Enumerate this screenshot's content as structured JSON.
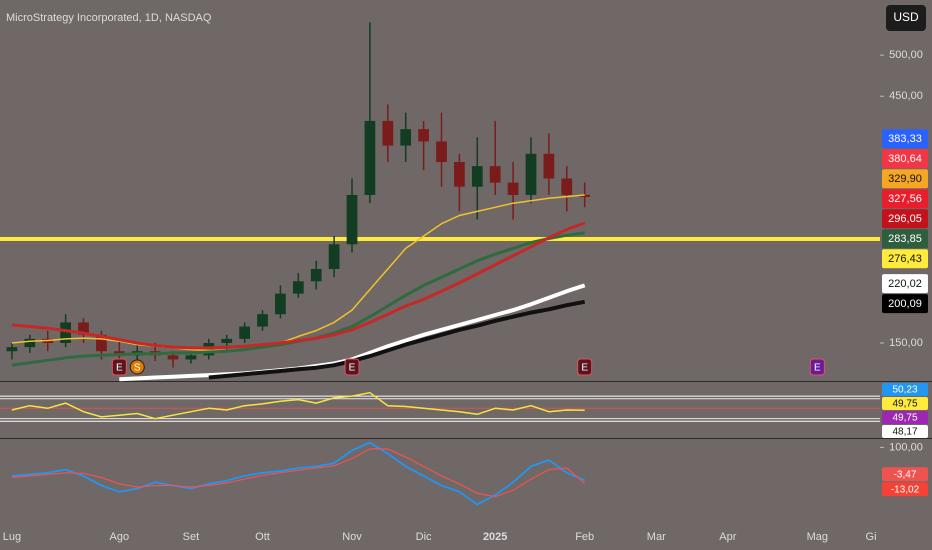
{
  "title": "MicroStrategy Incorporated, 1D, NASDAQ",
  "currency_button": "USD",
  "chart_data": [
    {
      "type": "candlestick",
      "categories": [
        "Lug",
        null,
        null,
        null,
        null,
        null,
        "Ago",
        null,
        null,
        null,
        "Set",
        null,
        null,
        null,
        "Ott",
        null,
        null,
        null,
        null,
        "Nov",
        null,
        null,
        null,
        "Dic",
        null,
        null,
        null,
        "2025",
        null,
        null,
        null,
        null,
        "Feb",
        null,
        null,
        null,
        "Mar",
        null,
        null,
        null,
        "Apr",
        null,
        null,
        null,
        null,
        "Mag",
        null,
        null,
        "Gi"
      ],
      "open": [
        140,
        145,
        155,
        150,
        175,
        160,
        140,
        135,
        140,
        135,
        130,
        135,
        150,
        155,
        170,
        185,
        210,
        225,
        240,
        270,
        330,
        420,
        390,
        410,
        395,
        370,
        340,
        365,
        345,
        330,
        380,
        350,
        330,
        null,
        null,
        null,
        null,
        null,
        null,
        null,
        null,
        null,
        null,
        null,
        null,
        null,
        null,
        null,
        null
      ],
      "high": [
        150,
        160,
        165,
        185,
        180,
        165,
        155,
        150,
        150,
        140,
        140,
        155,
        160,
        175,
        190,
        220,
        235,
        250,
        280,
        350,
        540,
        440,
        430,
        420,
        430,
        380,
        400,
        420,
        370,
        400,
        405,
        365,
        345,
        null,
        null,
        null,
        null,
        null,
        null,
        null,
        null,
        null,
        null,
        null,
        null,
        null,
        null,
        null,
        null
      ],
      "low": [
        130,
        138,
        140,
        145,
        150,
        130,
        120,
        125,
        128,
        120,
        125,
        130,
        140,
        150,
        165,
        180,
        205,
        215,
        230,
        260,
        320,
        370,
        370,
        360,
        340,
        310,
        300,
        330,
        300,
        320,
        330,
        310,
        315,
        null,
        null,
        null,
        null,
        null,
        null,
        null,
        null,
        null,
        null,
        null,
        null,
        null,
        null,
        null,
        null
      ],
      "close": [
        145,
        155,
        150,
        175,
        160,
        140,
        135,
        140,
        135,
        130,
        135,
        150,
        155,
        170,
        185,
        210,
        225,
        240,
        270,
        330,
        420,
        390,
        410,
        395,
        370,
        340,
        365,
        345,
        330,
        380,
        350,
        330,
        327.56,
        null,
        null,
        null,
        null,
        null,
        null,
        null,
        null,
        null,
        null,
        null,
        null,
        null,
        null,
        null,
        null
      ],
      "up_color": "#123d22",
      "down_color": "#7a1c1c",
      "ylim": [
        105,
        567
      ],
      "yticks": [
        {
          "value": 150,
          "label": "150,00"
        },
        {
          "value": 450,
          "label": "450,00"
        },
        {
          "value": 500,
          "label": "500,00"
        }
      ],
      "series": [
        {
          "color": "#f2c12e",
          "width": 1.5,
          "values": [
            150,
            152,
            153,
            155,
            156,
            155,
            152,
            148,
            146,
            144,
            142,
            141,
            141,
            142,
            145,
            150,
            158,
            165,
            175,
            190,
            215,
            240,
            265,
            280,
            295,
            305,
            310,
            315,
            320,
            323,
            326,
            328,
            329.9,
            null,
            null,
            null,
            null,
            null,
            null,
            null,
            null,
            null,
            null,
            null,
            null,
            null,
            null,
            null,
            null
          ]
        },
        {
          "color": "#2f6b3f",
          "width": 3,
          "values": [
            123,
            126,
            129,
            132,
            134,
            135,
            136,
            137,
            137,
            138,
            138,
            139,
            140,
            142,
            145,
            148,
            152,
            156,
            162,
            170,
            182,
            195,
            208,
            220,
            230,
            240,
            250,
            258,
            265,
            272,
            277,
            281,
            283.85,
            null,
            null,
            null,
            null,
            null,
            null,
            null,
            null,
            null,
            null,
            null,
            null,
            null,
            null,
            null,
            null
          ]
        },
        {
          "color": "#c62828",
          "width": 3,
          "values": [
            172,
            170,
            168,
            165,
            162,
            158,
            154,
            150,
            147,
            145,
            144,
            144,
            145,
            146,
            148,
            150,
            153,
            156,
            160,
            166,
            175,
            185,
            195,
            203,
            213,
            223,
            234,
            245,
            256,
            267,
            278,
            288,
            296.05,
            null,
            null,
            null,
            null,
            null,
            null,
            null,
            null,
            null,
            null,
            null,
            null,
            null,
            null,
            null,
            null
          ]
        },
        {
          "color": "#ffffff",
          "width": 4,
          "values": [
            null,
            null,
            null,
            null,
            null,
            null,
            106,
            107,
            108,
            109,
            110,
            111,
            112,
            113,
            115,
            117,
            119,
            122,
            125,
            130,
            138,
            146,
            153,
            160,
            166,
            172,
            178,
            184,
            190,
            197,
            205,
            213,
            220.02,
            null,
            null,
            null,
            null,
            null,
            null,
            null,
            null,
            null,
            null,
            null,
            null,
            null,
            null,
            null,
            null
          ]
        },
        {
          "color": "#111111",
          "width": 4,
          "values": [
            null,
            null,
            null,
            null,
            null,
            null,
            null,
            null,
            null,
            null,
            null,
            108,
            110,
            112,
            114,
            116,
            118,
            120,
            123,
            128,
            134,
            141,
            148,
            154,
            160,
            166,
            171,
            177,
            182,
            187,
            191,
            196,
            200.09,
            null,
            null,
            null,
            null,
            null,
            null,
            null,
            null,
            null,
            null,
            null,
            null,
            null,
            null,
            null,
            null
          ]
        }
      ],
      "hlines": [
        {
          "value": 276.43,
          "color": "#ffeb3b"
        }
      ],
      "price_labels": [
        {
          "value": 383.33,
          "label": "383,33",
          "color": "#2962ff",
          "text_color": "#ffffff"
        },
        {
          "value": 380.64,
          "label": "380,64",
          "color": "#f23645",
          "text_color": "#ffffff"
        },
        {
          "value": 329.9,
          "label": "329,90",
          "color": "#f5a623",
          "text_color": "#111111"
        },
        {
          "value": 327.56,
          "label": "327,56",
          "color": "#e91e2c",
          "text_color": "#ffffff"
        },
        {
          "value": 296.05,
          "label": "296,05",
          "color": "#c2121c",
          "text_color": "#ffffff"
        },
        {
          "value": 283.85,
          "label": "283,85",
          "color": "#2e5e3e",
          "text_color": "#ffffff"
        },
        {
          "value": 276.43,
          "label": "276,43",
          "color": "#ffeb3b",
          "text_color": "#111111"
        },
        {
          "value": 220.02,
          "label": "220,02",
          "color": "#ffffff",
          "text_color": "#111111"
        },
        {
          "value": 200.09,
          "label": "200,09",
          "color": "#000000",
          "text_color": "#ffffff"
        }
      ],
      "events": [
        null,
        null,
        null,
        null,
        null,
        null,
        {
          "label": "E",
          "color": "#5a1620"
        },
        {
          "label": "S",
          "color": "#e07b00"
        },
        null,
        null,
        null,
        null,
        null,
        null,
        null,
        null,
        null,
        null,
        null,
        {
          "label": "E",
          "color": "#5a1620"
        },
        null,
        null,
        null,
        null,
        null,
        null,
        null,
        null,
        null,
        null,
        null,
        null,
        {
          "label": "E",
          "color": "#5a1620"
        },
        null,
        null,
        null,
        null,
        null,
        null,
        null,
        null,
        null,
        null,
        null,
        null,
        {
          "label": "E",
          "color": "#6a1b9a"
        },
        null,
        null,
        null
      ]
    },
    {
      "type": "line",
      "ylim": [
        20,
        80
      ],
      "series": [
        {
          "color": "#f5e642",
          "width": 1.5,
          "values": [
            50,
            55,
            52,
            58,
            48,
            42,
            44,
            46,
            40,
            44,
            48,
            52,
            50,
            55,
            57,
            60,
            62,
            58,
            64,
            66,
            70,
            55,
            54,
            52,
            50,
            48,
            45,
            52,
            50,
            55,
            48,
            50,
            49.75,
            null,
            null,
            null,
            null,
            null,
            null,
            null,
            null,
            null,
            null,
            null,
            null,
            null,
            null,
            null,
            null
          ]
        }
      ],
      "hlines": [
        {
          "value": 66,
          "color": "#ffffff"
        },
        {
          "value": 63,
          "color": "#e8e8e8"
        },
        {
          "value": 52,
          "color": "#d9534f"
        },
        {
          "value": 40,
          "color": "#e8e8e8"
        },
        {
          "value": 37,
          "color": "#ffffff"
        }
      ],
      "price_labels": [
        {
          "value": 50.23,
          "label": "50,23",
          "color": "#2196f3",
          "text_color": "#ffffff"
        },
        {
          "value": 49.75,
          "label": "49,75",
          "color": "#ffeb3b",
          "text_color": "#111111"
        },
        {
          "value": 49.75,
          "label": "49,75",
          "color": "#9c27b0",
          "text_color": "#ffffff"
        },
        {
          "value": 48.17,
          "label": "48,17",
          "color": "#ffffff",
          "text_color": "#111111"
        }
      ]
    },
    {
      "type": "line",
      "ylim": [
        -135,
        120
      ],
      "yticks": [
        {
          "value": 100,
          "label": "100,00"
        }
      ],
      "series": [
        {
          "color": "#2196f3",
          "width": 1.8,
          "values": [
            10,
            15,
            20,
            30,
            10,
            -20,
            -40,
            -30,
            -10,
            -20,
            -30,
            -15,
            -5,
            10,
            20,
            25,
            35,
            40,
            50,
            90,
            115,
            80,
            40,
            10,
            -20,
            -40,
            -80,
            -50,
            -10,
            40,
            60,
            20,
            -3.47,
            null,
            null,
            null,
            null,
            null,
            null,
            null,
            null,
            null,
            null,
            null,
            null,
            null,
            null,
            null,
            null
          ]
        },
        {
          "color": "#ef5350",
          "width": 1.2,
          "values": [
            5,
            10,
            15,
            20,
            18,
            5,
            -15,
            -25,
            -20,
            -20,
            -25,
            -20,
            -12,
            0,
            12,
            20,
            28,
            35,
            42,
            65,
            95,
            95,
            70,
            40,
            10,
            -15,
            -45,
            -55,
            -35,
            0,
            30,
            35,
            -13.02,
            null,
            null,
            null,
            null,
            null,
            null,
            null,
            null,
            null,
            null,
            null,
            null,
            null,
            null,
            null,
            null
          ]
        }
      ],
      "price_labels": [
        {
          "value": -3.47,
          "label": "-3,47",
          "color": "#ef5350",
          "text_color": "#ffffff"
        },
        {
          "value": -13.02,
          "label": "-13,02",
          "color": "#f44336",
          "text_color": "#ffffff"
        }
      ]
    }
  ]
}
